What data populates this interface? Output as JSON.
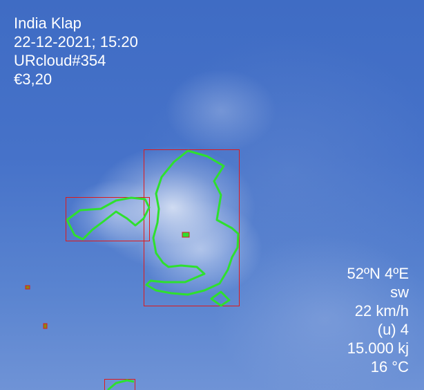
{
  "header": {
    "name": "India Klap",
    "datetime": "22-12-2021; 15:20",
    "cloud_id": "URcloud#354",
    "price": "€3,20"
  },
  "weather": {
    "location": "52ºN 4ºE",
    "wind_direction": "sw",
    "wind_speed": "22 km/h",
    "uv_index": "(u) 4",
    "energy": "15.000 kj",
    "temperature": "16 °C"
  },
  "colors": {
    "box": "#e01818",
    "contour": "#2ee02e",
    "marker_fill": "#8a8a10"
  }
}
